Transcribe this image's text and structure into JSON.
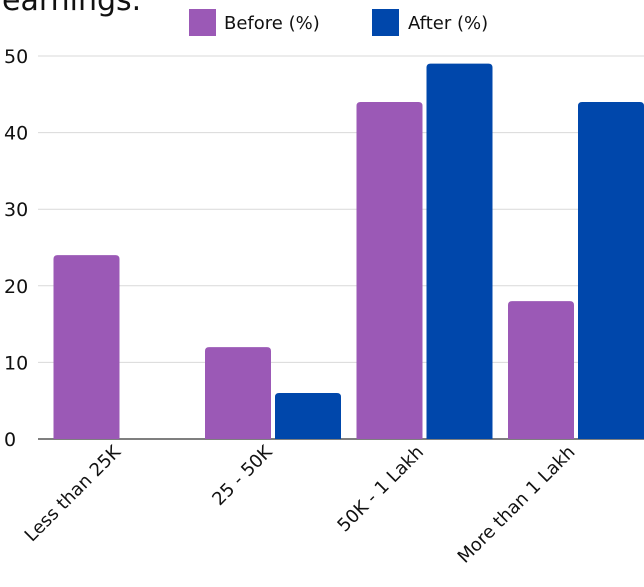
{
  "chart_data": {
    "type": "bar",
    "title": "earnings.",
    "categories": [
      "Less than 25K",
      "25 - 50K",
      "50K - 1 Lakh",
      "More than 1 Lakh"
    ],
    "series": [
      {
        "name": "Before (%)",
        "values": [
          24,
          12,
          44,
          18
        ],
        "color": "#9b59b6"
      },
      {
        "name": "After (%)",
        "values": [
          0,
          6,
          49,
          44
        ],
        "color": "#0047ab"
      }
    ],
    "xlabel": "",
    "ylabel": "",
    "ylim": [
      0,
      50
    ],
    "yticks": [
      0,
      10,
      20,
      30,
      40,
      50
    ],
    "grid": true,
    "legend_position": "top"
  }
}
